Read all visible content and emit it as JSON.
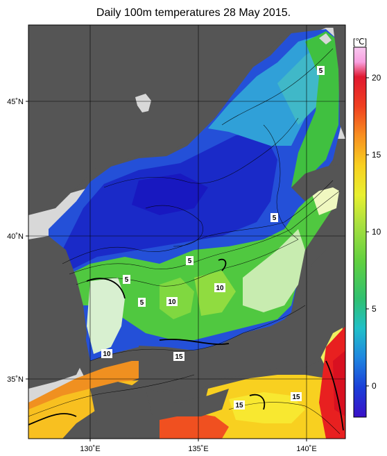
{
  "title": "Daily 100m temperatures 28 May 2015.",
  "axes": {
    "lat_labels": [
      "45˚N",
      "40˚N",
      "35˚N"
    ],
    "lon_labels": [
      "130˚E",
      "135˚E",
      "140˚E"
    ]
  },
  "colorbar": {
    "unit": "[℃]",
    "ticks": [
      "20",
      "15",
      "10",
      "5",
      "0"
    ],
    "range": [
      -2,
      22
    ],
    "colors": [
      "#3a10c8",
      "#1b3fd8",
      "#1f86e0",
      "#20c0c8",
      "#30c070",
      "#60d040",
      "#a8e040",
      "#e8f030",
      "#f8d020",
      "#f89020",
      "#f04020",
      "#e01830",
      "#f8b0e8"
    ]
  },
  "contour_labels": [
    "5",
    "5",
    "5",
    "5",
    "5",
    "10",
    "10",
    "10",
    "15",
    "15",
    "15"
  ],
  "colors": {
    "land": "#555555",
    "ice_mask": "#d8d8d8",
    "frame": "#000000"
  }
}
